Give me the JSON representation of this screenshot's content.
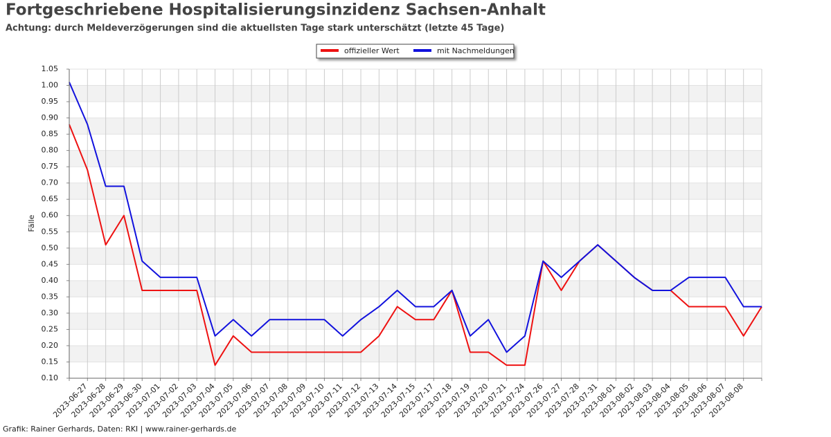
{
  "chart_data": {
    "type": "line",
    "title": "Fortgeschriebene Hospitalisierungsinzidenz Sachsen-Anhalt",
    "subtitle": "Achtung: durch Meldeverzögerungen sind die aktuellsten Tage stark unterschätzt (letzte 45 Tage)",
    "y_label": "Fälle",
    "footer": "Grafik: Rainer Gerhards, Daten: RKI | www.rainer-gerhards.de",
    "categories": [
      null,
      "2023-06-27",
      "2023-06-28",
      "2023-06-29",
      "2023-06-30",
      "2023-07-01",
      "2023-07-02",
      "2023-07-03",
      "2023-07-04",
      "2023-07-05",
      "2023-07-06",
      "2023-07-07",
      "2023-07-08",
      "2023-07-09",
      "2023-07-10",
      "2023-07-11",
      "2023-07-12",
      "2023-07-13",
      "2023-07-14",
      "2023-07-15",
      "2023-07-17",
      "2023-07-18",
      "2023-07-19",
      "2023-07-20",
      "2023-07-21",
      "2023-07-24",
      "2023-07-26",
      "2023-07-27",
      "2023-07-28",
      "2023-07-31",
      "2023-08-01",
      "2023-08-02",
      "2023-08-03",
      "2023-08-04",
      "2023-08-05",
      "2023-08-06",
      "2023-08-07",
      "2023-08-08",
      null
    ],
    "series": [
      {
        "name": "offizieller Wert",
        "color": "#ee1111",
        "values": [
          0.88,
          0.74,
          0.51,
          0.6,
          0.37,
          0.37,
          0.37,
          0.37,
          0.14,
          0.23,
          0.18,
          0.18,
          0.18,
          0.18,
          0.18,
          0.18,
          0.18,
          0.23,
          0.32,
          0.28,
          0.28,
          0.37,
          0.18,
          0.18,
          0.14,
          0.14,
          0.46,
          0.37,
          0.46,
          0.51,
          0.46,
          0.41,
          0.37,
          0.37,
          0.32,
          0.32,
          0.32,
          0.23,
          0.32
        ]
      },
      {
        "name": "mit Nachmeldungen",
        "color": "#1111dd",
        "values": [
          1.01,
          0.88,
          0.69,
          0.69,
          0.46,
          0.41,
          0.41,
          0.41,
          0.23,
          0.28,
          0.23,
          0.28,
          0.28,
          0.28,
          0.28,
          0.23,
          0.28,
          0.32,
          0.37,
          0.32,
          0.32,
          0.37,
          0.23,
          0.28,
          0.18,
          0.23,
          0.46,
          0.41,
          0.46,
          0.51,
          0.46,
          0.41,
          0.37,
          0.37,
          0.41,
          0.41,
          0.41,
          0.32,
          0.32
        ]
      }
    ],
    "ylim": [
      0.1,
      1.05
    ],
    "yticks": [
      {
        "value": 0.1,
        "label": "0.10"
      },
      {
        "value": 0.15,
        "label": "0.15"
      },
      {
        "value": 0.2,
        "label": "0.20"
      },
      {
        "value": 0.25,
        "label": "0.25"
      },
      {
        "value": 0.3,
        "label": "0.30"
      },
      {
        "value": 0.35,
        "label": "0.35"
      },
      {
        "value": 0.4,
        "label": "0.40"
      },
      {
        "value": 0.45,
        "label": "0.45"
      },
      {
        "value": 0.5,
        "label": "0.50"
      },
      {
        "value": 0.55,
        "label": "0.55"
      },
      {
        "value": 0.6,
        "label": "0.60"
      },
      {
        "value": 0.65,
        "label": "0.65"
      },
      {
        "value": 0.7,
        "label": "0.70"
      },
      {
        "value": 0.75,
        "label": "0.75"
      },
      {
        "value": 0.8,
        "label": "0.80"
      },
      {
        "value": 0.85,
        "label": "0.85"
      },
      {
        "value": 0.9,
        "label": "0.90"
      },
      {
        "value": 0.95,
        "label": "0.95"
      },
      {
        "value": 1.0,
        "label": "1.00"
      },
      {
        "value": 1.05,
        "label": "1.05"
      }
    ],
    "grid": true,
    "legend": "top"
  }
}
